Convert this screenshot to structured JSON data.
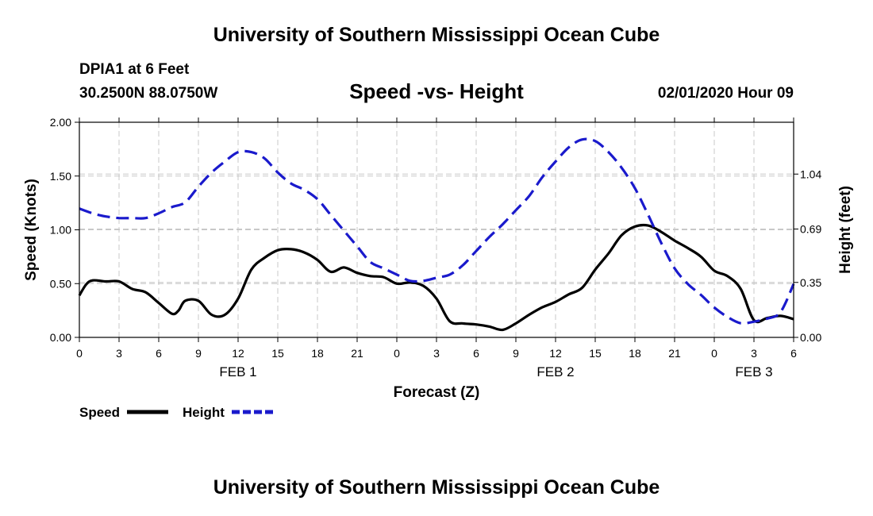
{
  "header": {
    "title": "University of Southern Mississippi Ocean Cube",
    "station": "DPIA1 at 6 Feet",
    "coords": "30.2500N 88.0750W",
    "chart_title": "Speed -vs- Height",
    "datetime": "02/01/2020 Hour 09"
  },
  "footer": {
    "title": "University of Southern Mississippi Ocean Cube"
  },
  "colors": {
    "speed": "#000000",
    "height": "#1a1acc",
    "grid": "#c8c8c8"
  },
  "chart_data": {
    "type": "line",
    "title": "Speed -vs- Height",
    "xlabel": "Forecast (Z)",
    "ylabel": "Speed (Knots)",
    "y2label": "Height (feet)",
    "xlim": [
      0,
      54
    ],
    "ylim": [
      0,
      2.0
    ],
    "y2lim": [
      0,
      1.37
    ],
    "x_ticks": [
      0,
      3,
      6,
      9,
      12,
      15,
      18,
      21,
      24,
      27,
      30,
      33,
      36,
      39,
      42,
      45,
      48,
      51,
      54
    ],
    "x_tick_labels": [
      "0",
      "3",
      "6",
      "9",
      "12",
      "15",
      "18",
      "21",
      "0",
      "3",
      "6",
      "9",
      "12",
      "15",
      "18",
      "21",
      "0",
      "3",
      "6"
    ],
    "date_labels": [
      {
        "x": 12,
        "label": "FEB 1"
      },
      {
        "x": 36,
        "label": "FEB 2"
      },
      {
        "x": 51,
        "label": "FEB 3"
      }
    ],
    "y_ticks": [
      0,
      0.5,
      1.0,
      1.5,
      2.0
    ],
    "y_tick_labels": [
      "0.00",
      "0.50",
      "1.00",
      "1.50",
      "2.00"
    ],
    "y2_ticks": [
      0,
      0.35,
      0.69,
      1.04
    ],
    "y2_tick_labels": [
      "0.00",
      "0.35",
      "0.69",
      "1.04"
    ],
    "grid": true,
    "series": [
      {
        "name": "Speed",
        "axis": "left",
        "style": "solid",
        "x": [
          0,
          0.5,
          1,
          2,
          3,
          4,
          5,
          6,
          7,
          7.5,
          8,
          9,
          10,
          11,
          12,
          13,
          14,
          15,
          16,
          17,
          18,
          19,
          20,
          21,
          22,
          23,
          24,
          25,
          26,
          27,
          28,
          29,
          30,
          31,
          32,
          33,
          34,
          35,
          36,
          37,
          38,
          39,
          40,
          41,
          42,
          43,
          44,
          45,
          46,
          47,
          48,
          49,
          50,
          51,
          52,
          53,
          54
        ],
        "y": [
          0.39,
          0.49,
          0.53,
          0.52,
          0.52,
          0.45,
          0.42,
          0.32,
          0.22,
          0.25,
          0.34,
          0.34,
          0.21,
          0.21,
          0.36,
          0.63,
          0.74,
          0.81,
          0.82,
          0.79,
          0.72,
          0.61,
          0.65,
          0.6,
          0.57,
          0.56,
          0.5,
          0.51,
          0.48,
          0.36,
          0.15,
          0.13,
          0.12,
          0.1,
          0.07,
          0.13,
          0.21,
          0.28,
          0.33,
          0.4,
          0.46,
          0.63,
          0.78,
          0.95,
          1.03,
          1.04,
          0.98,
          0.9,
          0.83,
          0.75,
          0.62,
          0.57,
          0.45,
          0.16,
          0.18,
          0.2,
          0.17
        ]
      },
      {
        "name": "Height",
        "axis": "right",
        "style": "dashed",
        "x": [
          0,
          1,
          2,
          3,
          4,
          5,
          6,
          7,
          8,
          9,
          10,
          11,
          12,
          13,
          14,
          15,
          16,
          17,
          18,
          19,
          20,
          21,
          22,
          23,
          24,
          25,
          26,
          27,
          28,
          29,
          30,
          31,
          32,
          33,
          34,
          35,
          36,
          37,
          38,
          39,
          40,
          41,
          42,
          43,
          44,
          45,
          46,
          47,
          48,
          49,
          50,
          51,
          52,
          53,
          54
        ],
        "y": [
          0.82,
          0.79,
          0.77,
          0.76,
          0.76,
          0.76,
          0.79,
          0.83,
          0.86,
          0.96,
          1.05,
          1.12,
          1.18,
          1.18,
          1.14,
          1.05,
          0.98,
          0.94,
          0.88,
          0.78,
          0.68,
          0.58,
          0.48,
          0.44,
          0.4,
          0.36,
          0.36,
          0.38,
          0.4,
          0.46,
          0.55,
          0.64,
          0.72,
          0.81,
          0.9,
          1.02,
          1.12,
          1.21,
          1.26,
          1.25,
          1.18,
          1.08,
          0.95,
          0.78,
          0.6,
          0.44,
          0.34,
          0.27,
          0.19,
          0.13,
          0.09,
          0.1,
          0.12,
          0.16,
          0.34
        ]
      }
    ],
    "legend": {
      "position": "bottom-left",
      "entries": [
        "Speed",
        "Height"
      ]
    }
  }
}
